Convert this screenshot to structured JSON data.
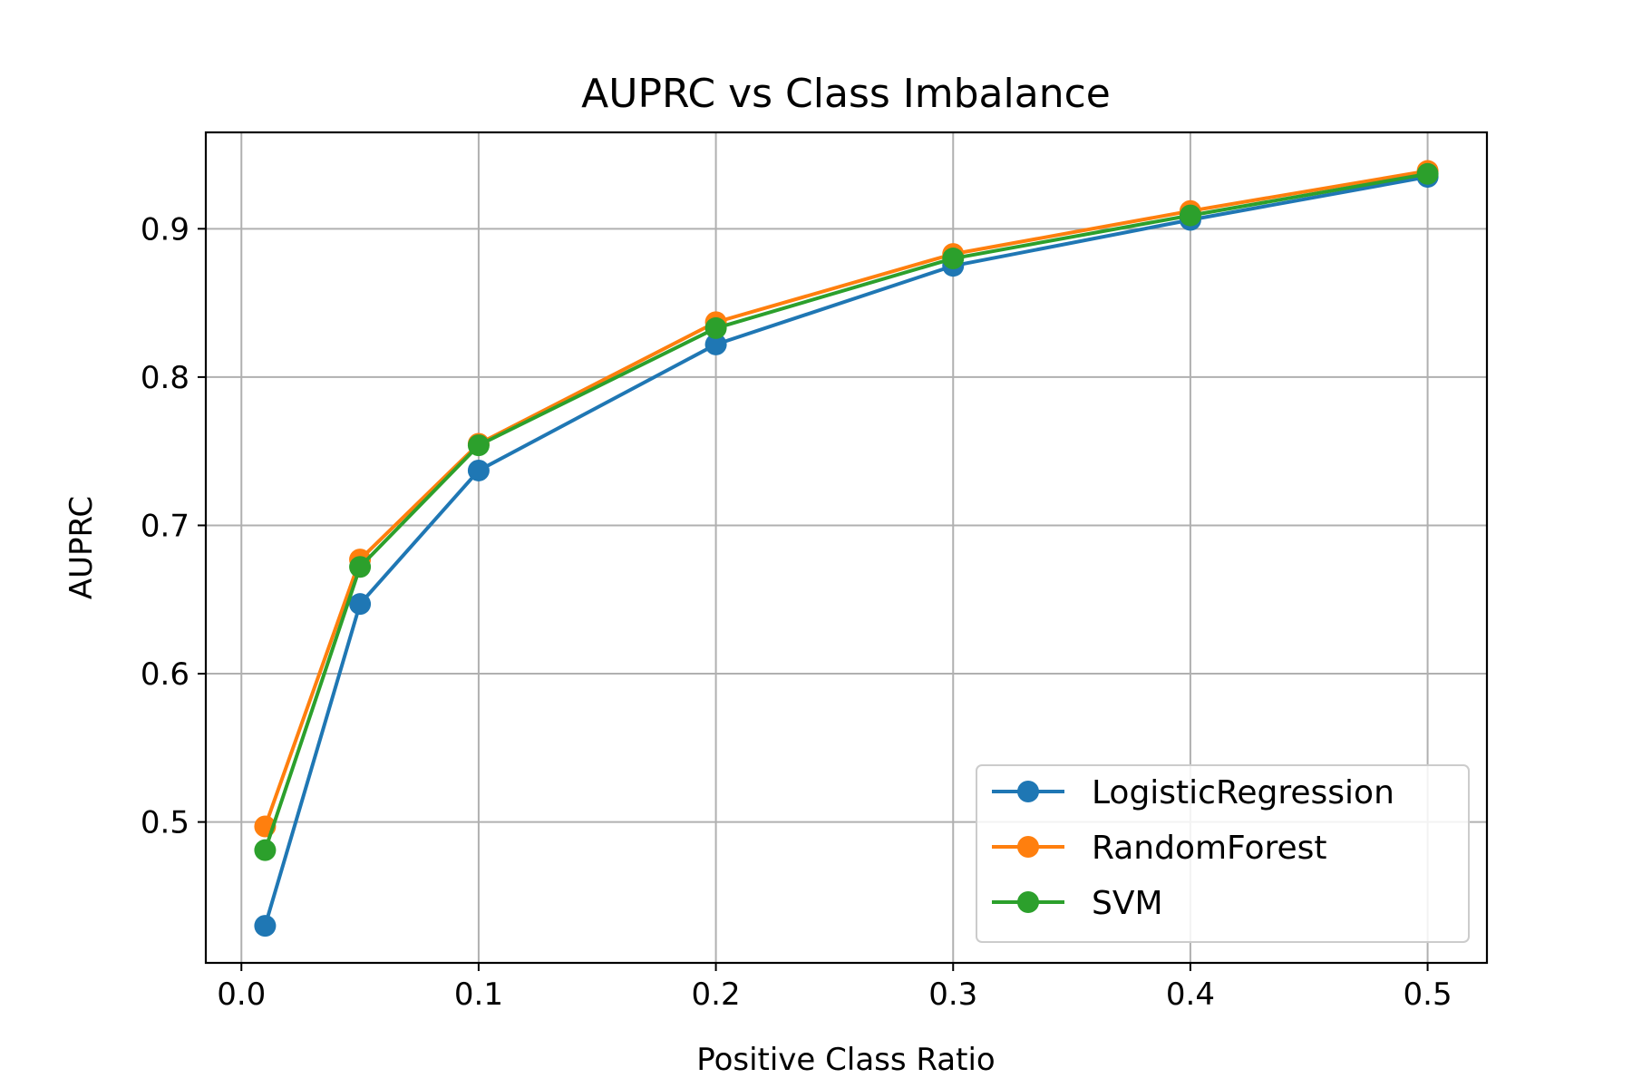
{
  "chart_data": {
    "type": "line",
    "title": "AUPRC vs Class Imbalance",
    "xlabel": "Positive Class Ratio",
    "ylabel": "AUPRC",
    "x": [
      0.01,
      0.05,
      0.1,
      0.2,
      0.3,
      0.4,
      0.5
    ],
    "xlim": [
      -0.015,
      0.525
    ],
    "ylim": [
      0.405,
      0.965
    ],
    "xticks": [
      0.0,
      0.1,
      0.2,
      0.3,
      0.4,
      0.5
    ],
    "xtick_labels": [
      "0.0",
      "0.1",
      "0.2",
      "0.3",
      "0.4",
      "0.5"
    ],
    "yticks": [
      0.5,
      0.6,
      0.7,
      0.8,
      0.9
    ],
    "ytick_labels": [
      "0.5",
      "0.6",
      "0.7",
      "0.8",
      "0.9"
    ],
    "grid": true,
    "legend_position": "lower-right",
    "series": [
      {
        "name": "LogisticRegression",
        "color": "#1f77b4",
        "values": [
          0.43,
          0.647,
          0.737,
          0.822,
          0.875,
          0.906,
          0.935
        ]
      },
      {
        "name": "RandomForest",
        "color": "#ff7f0e",
        "values": [
          0.497,
          0.677,
          0.755,
          0.837,
          0.883,
          0.912,
          0.939
        ]
      },
      {
        "name": "SVM",
        "color": "#2ca02c",
        "values": [
          0.481,
          0.672,
          0.754,
          0.833,
          0.88,
          0.909,
          0.937
        ]
      }
    ]
  }
}
